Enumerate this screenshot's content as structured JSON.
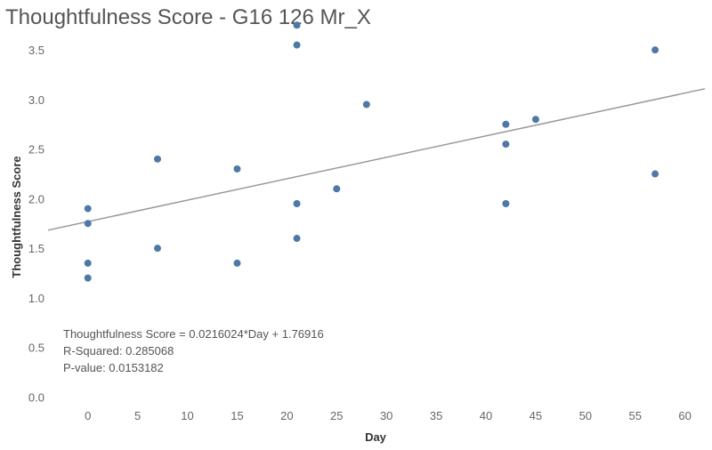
{
  "chart_data": {
    "type": "scatter",
    "title": "Thoughtfulness Score - G16 126 Mr_X",
    "xlabel": "Day",
    "ylabel": "Thoughtfulness Score",
    "xlim": [
      -4,
      62
    ],
    "ylim": [
      -0.05,
      3.95
    ],
    "x_ticks": [
      0,
      5,
      10,
      15,
      20,
      25,
      30,
      35,
      40,
      45,
      50,
      55,
      60
    ],
    "y_ticks": [
      0.0,
      0.5,
      1.0,
      1.5,
      2.0,
      2.5,
      3.0,
      3.5
    ],
    "grid": false,
    "point_color": "#4e79a7",
    "trend_color": "#999999",
    "points": [
      {
        "x": 0,
        "y": 1.9
      },
      {
        "x": 0,
        "y": 1.75
      },
      {
        "x": 0,
        "y": 1.35
      },
      {
        "x": 0,
        "y": 1.2
      },
      {
        "x": 7,
        "y": 2.4
      },
      {
        "x": 7,
        "y": 1.5
      },
      {
        "x": 15,
        "y": 2.3
      },
      {
        "x": 15,
        "y": 1.35
      },
      {
        "x": 21,
        "y": 3.75
      },
      {
        "x": 21,
        "y": 3.55
      },
      {
        "x": 21,
        "y": 1.95
      },
      {
        "x": 21,
        "y": 1.6
      },
      {
        "x": 25,
        "y": 2.1
      },
      {
        "x": 28,
        "y": 2.95
      },
      {
        "x": 42,
        "y": 2.75
      },
      {
        "x": 42,
        "y": 2.55
      },
      {
        "x": 42,
        "y": 1.95
      },
      {
        "x": 45,
        "y": 2.8
      },
      {
        "x": 57,
        "y": 3.5
      },
      {
        "x": 57,
        "y": 2.25
      }
    ],
    "trend_line": {
      "slope": 0.0216024,
      "intercept": 1.76916
    },
    "annotations": [
      "Thoughtfulness Score = 0.0216024*Day + 1.76916",
      "R-Squared: 0.285068",
      "P-value: 0.0153182"
    ]
  }
}
